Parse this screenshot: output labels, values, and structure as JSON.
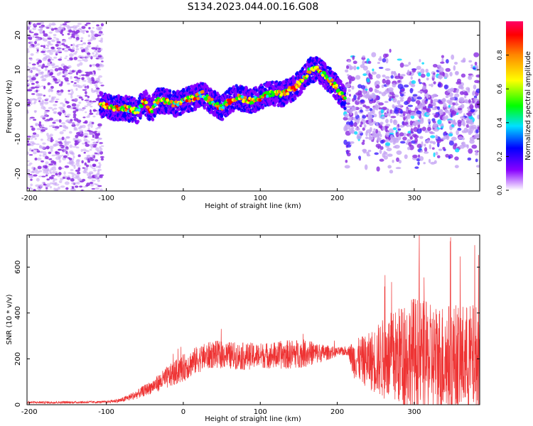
{
  "chart_data": [
    {
      "type": "heatmap",
      "title": "S134.2023.044.00.16.G08",
      "xlabel": "Height of straight line (km)",
      "ylabel": "Frequency (Hz)",
      "xlim": [
        -203,
        385
      ],
      "ylim": [
        -25,
        24
      ],
      "x_ticks": [
        -200,
        -100,
        0,
        100,
        200,
        300
      ],
      "y_ticks": [
        -20,
        -10,
        0,
        10,
        20
      ],
      "colorbar": {
        "label": "Normalized spectral amplitude",
        "range": [
          0,
          1
        ],
        "ticks": [
          0.0,
          0.2,
          0.4,
          0.6,
          0.8
        ],
        "colors": [
          "#ffffff",
          "#8800ff",
          "#0000ff",
          "#00e0ff",
          "#00ff00",
          "#ffff00",
          "#ff8800",
          "#ff0000"
        ]
      },
      "ridge": {
        "x": [
          -108,
          -90,
          -75,
          -60,
          -50,
          -42,
          -35,
          -25,
          -10,
          0,
          15,
          25,
          35,
          50,
          60,
          70,
          90,
          110,
          130,
          145,
          155,
          165,
          175,
          185,
          195,
          205,
          210
        ],
        "y": [
          0,
          -1,
          -1,
          -2,
          1,
          -2,
          1,
          1,
          0,
          1,
          2,
          3,
          1,
          -1,
          1,
          2,
          1,
          3,
          3,
          5,
          7,
          10,
          10,
          8,
          6,
          3,
          2
        ]
      },
      "noise_regions": [
        {
          "x": [
            -203,
            -105
          ],
          "y": [
            -25,
            24
          ],
          "level": "low"
        },
        {
          "x": [
            210,
            385
          ],
          "y": [
            -20,
            16
          ],
          "level": "medium"
        }
      ]
    },
    {
      "type": "line",
      "xlabel": "Height of straight line (km)",
      "ylabel": "SNR (10 * v/v)",
      "xlim": [
        -203,
        385
      ],
      "ylim": [
        0,
        740
      ],
      "x_ticks": [
        -200,
        -100,
        0,
        100,
        200,
        300
      ],
      "y_ticks": [
        0,
        200,
        400,
        600
      ],
      "series": [
        {
          "color": "#ee3333",
          "envelope_x": [
            -203,
            -150,
            -100,
            -80,
            -60,
            -40,
            -20,
            0,
            20,
            40,
            60,
            80,
            100,
            120,
            140,
            160,
            180,
            200,
            215,
            220,
            240,
            260,
            280,
            300,
            320,
            340,
            360,
            385
          ],
          "envelope_mean": [
            10,
            10,
            12,
            20,
            45,
            80,
            120,
            160,
            200,
            220,
            215,
            210,
            215,
            215,
            220,
            225,
            225,
            230,
            235,
            200,
            190,
            200,
            210,
            220,
            200,
            200,
            200,
            200
          ],
          "envelope_amp": [
            5,
            5,
            5,
            10,
            20,
            30,
            50,
            60,
            60,
            60,
            60,
            60,
            55,
            60,
            65,
            60,
            40,
            20,
            20,
            80,
            120,
            180,
            220,
            260,
            240,
            250,
            240,
            240
          ]
        }
      ]
    }
  ]
}
